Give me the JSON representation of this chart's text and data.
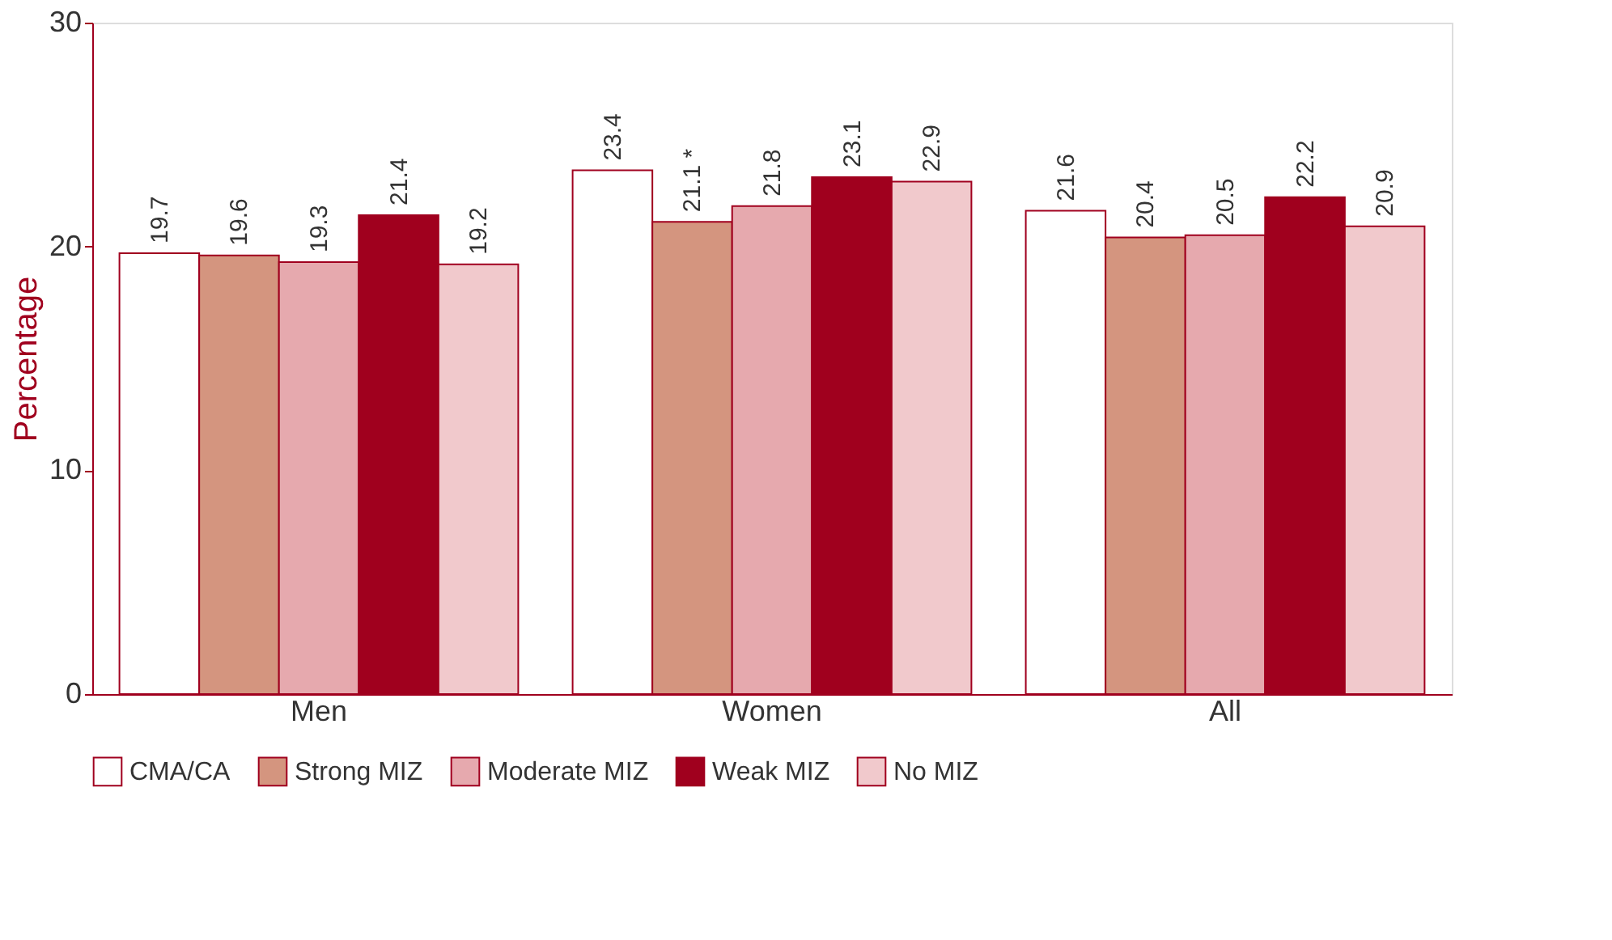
{
  "chart_data": {
    "type": "bar",
    "ylabel": "Percentage",
    "categories": [
      "Men",
      "Women",
      "All"
    ],
    "ylim": [
      0,
      30
    ],
    "yticks": [
      0,
      10,
      20,
      30
    ],
    "grid": false,
    "legend": "bottom",
    "series": [
      {
        "name": "CMA/CA",
        "color": "#ffffff",
        "values": [
          19.7,
          23.4,
          21.6
        ],
        "value_labels": [
          "19.7",
          "23.4",
          "21.6"
        ]
      },
      {
        "name": "Strong MIZ",
        "color": "#d4957f",
        "values": [
          19.6,
          21.1,
          20.4
        ],
        "value_labels": [
          "19.6",
          "21.1 *",
          "20.4"
        ]
      },
      {
        "name": "Moderate MIZ",
        "color": "#e6a9ae",
        "values": [
          19.3,
          21.8,
          20.5
        ],
        "value_labels": [
          "19.3",
          "21.8",
          "20.5"
        ]
      },
      {
        "name": "Weak MIZ",
        "color": "#a0001e",
        "values": [
          21.4,
          23.1,
          22.2
        ],
        "value_labels": [
          "21.4",
          "23.1",
          "22.2"
        ]
      },
      {
        "name": "No MIZ",
        "color": "#f1c9cc",
        "values": [
          19.2,
          22.9,
          20.9
        ],
        "value_labels": [
          "19.2",
          "22.9",
          "20.9"
        ]
      }
    ]
  }
}
